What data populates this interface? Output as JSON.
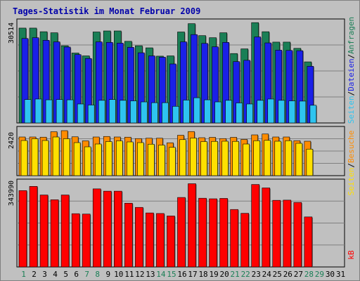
{
  "chart_data": {
    "type": "bar",
    "title": "Tages-Statistik im Monat Februar 2009",
    "x": [
      "1",
      "2",
      "3",
      "4",
      "5",
      "6",
      "7",
      "8",
      "9",
      "10",
      "11",
      "12",
      "13",
      "14",
      "15",
      "16",
      "17",
      "18",
      "19",
      "20",
      "21",
      "22",
      "23",
      "24",
      "25",
      "26",
      "27",
      "28",
      "29",
      "30",
      "31"
    ],
    "weekend_days": [
      "1",
      "7",
      "8",
      "14",
      "15",
      "21",
      "22",
      "28",
      "29"
    ],
    "panels": [
      {
        "id": "top",
        "ymax_label": "30514",
        "ylim": [
          0,
          40000
        ],
        "series": [
          {
            "name": "Anfragen",
            "color": "#1a7f56",
            "values": [
              36500,
              36500,
              35100,
              34700,
              29700,
              26900,
              25800,
              35000,
              35400,
              35400,
              31400,
              29700,
              28900,
              25700,
              25800,
              35000,
              38200,
              33600,
              32800,
              34700,
              26700,
              28500,
              38600,
              35100,
              31100,
              31100,
              28700,
              23500,
              0,
              0,
              0
            ]
          },
          {
            "name": "Dateien",
            "color": "#1a20e8",
            "values": [
              32500,
              32800,
              31800,
              31200,
              29200,
              26300,
              24800,
              31200,
              31000,
              30700,
              29100,
              27000,
              25800,
              25300,
              22700,
              31200,
              34000,
              30600,
              29300,
              31000,
              23600,
              24100,
              33100,
              30800,
              28000,
              27900,
              27800,
              21800,
              0,
              0,
              0
            ]
          },
          {
            "name": "Seiten",
            "color": "#2ec4f0",
            "values": [
              9000,
              9200,
              8900,
              9000,
              8900,
              7300,
              6900,
              8700,
              9000,
              8700,
              8500,
              8100,
              7800,
              7800,
              6400,
              8800,
              9700,
              8900,
              8100,
              8700,
              7700,
              7300,
              8700,
              9200,
              8700,
              8500,
              8400,
              6800,
              0,
              0,
              0
            ]
          }
        ]
      },
      {
        "id": "middle",
        "ymax_label": "2420",
        "ylim": [
          0,
          2800
        ],
        "series": [
          {
            "name": "Besuche",
            "color": "#ff8c00",
            "values": [
              2200,
              2200,
              2190,
              2500,
              2560,
              2210,
              1980,
              2200,
              2230,
              2200,
              2190,
              2110,
              2130,
              2130,
              1870,
              2300,
              2510,
              2160,
              2180,
              2110,
              2180,
              2060,
              2320,
              2370,
              2200,
              2200,
              1990,
              1960,
              0,
              0,
              0
            ]
          },
          {
            "name": "Seiten",
            "color": "#ffe000",
            "values": [
              2000,
              2100,
              2000,
              2200,
              2100,
              1880,
              1640,
              1800,
              1940,
              1980,
              1920,
              1880,
              1790,
              1740,
              1610,
              2050,
              2140,
              1940,
              1950,
              1960,
              1950,
              1800,
              1990,
              2010,
              1960,
              1990,
              1840,
              1510,
              0,
              0,
              0
            ]
          }
        ]
      },
      {
        "id": "bottom",
        "ymax_label": "343990",
        "ylim": [
          0,
          460000
        ],
        "series": [
          {
            "name": "kB",
            "color": "#ff0000",
            "values": [
              400000,
              422000,
              377000,
              352000,
              377000,
              279000,
              277000,
              409000,
              397000,
              397000,
              334000,
              312000,
              283000,
              280000,
              267000,
              364000,
              436000,
              360000,
              357000,
              359000,
              301000,
              281000,
              432000,
              414000,
              349000,
              350000,
              338000,
              262000,
              0,
              0,
              0
            ]
          }
        ]
      }
    ],
    "legend_right": [
      {
        "text": "Anfragen",
        "color": "#1a7f56"
      },
      {
        "text": "Dateien",
        "color": "#1a20e8"
      },
      {
        "text": "Seiten",
        "color": "#2ec4f0"
      },
      {
        "text": "Besuche",
        "color": "#ff8c00"
      },
      {
        "text": "Seiten",
        "color": "#ffe000"
      },
      {
        "text": "kB",
        "color": "#ff0000"
      }
    ],
    "separator": "/",
    "colors": {
      "title": "#0000aa",
      "panel_bg": "#c0c0c0",
      "outer_bg": "#c0c0c0",
      "grid": "#808080",
      "day_normal": "#000000",
      "day_weekend": "#1a7f56"
    }
  }
}
